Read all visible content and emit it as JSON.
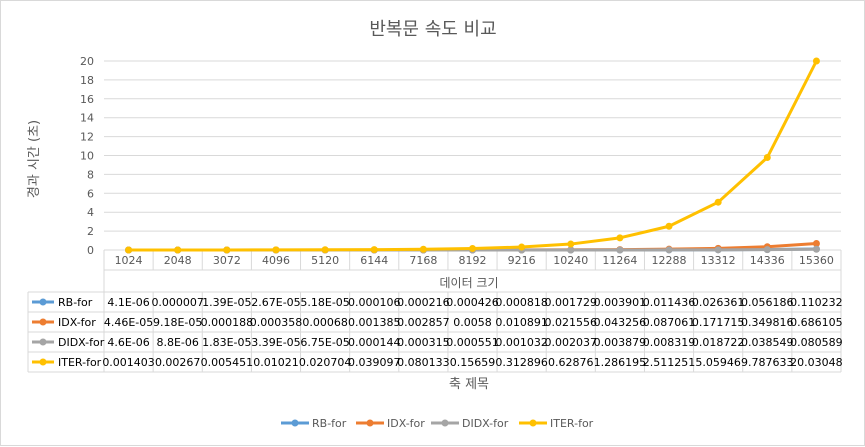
{
  "chart_data": {
    "type": "line",
    "title": "반복문 속도 비교",
    "ylabel": "경과 시간 (초)",
    "xlabel": "데이터 크기",
    "table_axis_title": "축 제목",
    "ylim": [
      0,
      20
    ],
    "yticks": [
      "0",
      "2",
      "4",
      "6",
      "8",
      "10",
      "12",
      "14",
      "16",
      "18",
      "20"
    ],
    "grid": true,
    "legend_position": "bottom",
    "categories": [
      "1024",
      "2048",
      "3072",
      "4096",
      "5120",
      "6144",
      "7168",
      "8192",
      "9216",
      "10240",
      "11264",
      "12288",
      "13312",
      "14336",
      "15360"
    ],
    "series": [
      {
        "name": "RB-for",
        "color": "#5b9bd5",
        "values": [
          4.1e-06,
          7e-06,
          1.39e-05,
          2.67e-05,
          5.18e-05,
          0.000106,
          0.000216,
          0.000426,
          0.000818,
          0.001729,
          0.003901,
          0.011436,
          0.026361,
          0.056186,
          0.110232
        ],
        "labels": [
          "4.1E-06",
          "0.000007",
          "1.39E-05",
          "2.67E-05",
          "5.18E-05",
          "0.000106",
          "0.000216",
          "0.000426",
          "0.000818",
          "0.001729",
          "0.003901",
          "0.011436",
          "0.026361",
          "0.056186",
          "0.110232"
        ]
      },
      {
        "name": "IDX-for",
        "color": "#ed7d31",
        "values": [
          4.46e-05,
          9.18e-05,
          0.000188,
          0.000358,
          0.00068,
          0.001385,
          0.002857,
          0.0058,
          0.010891,
          0.021556,
          0.043256,
          0.087061,
          0.171715,
          0.349816,
          0.686105
        ],
        "labels": [
          "4.46E-05",
          "9.18E-05",
          "0.000188",
          "0.000358",
          "0.00068",
          "0.001385",
          "0.002857",
          "0.0058",
          "0.010891",
          "0.021556",
          "0.043256",
          "0.087061",
          "0.171715",
          "0.349816",
          "0.686105"
        ]
      },
      {
        "name": "DIDX-for",
        "color": "#a5a5a5",
        "values": [
          4.6e-06,
          8.8e-06,
          1.83e-05,
          3.39e-05,
          6.75e-05,
          0.000144,
          0.000315,
          0.000551,
          0.001032,
          0.002037,
          0.003879,
          0.008319,
          0.018722,
          0.038549,
          0.080589
        ],
        "labels": [
          "4.6E-06",
          "8.8E-06",
          "1.83E-05",
          "3.39E-05",
          "6.75E-05",
          "0.000144",
          "0.000315",
          "0.000551",
          "0.001032",
          "0.002037",
          "0.003879",
          "0.008319",
          "0.018722",
          "0.038549",
          "0.080589"
        ]
      },
      {
        "name": "ITER-for",
        "color": "#ffc000",
        "values": [
          0.001403,
          0.00267,
          0.005451,
          0.01021,
          0.020704,
          0.039097,
          0.080133,
          0.15659,
          0.312896,
          0.62876,
          1.286195,
          2.511251,
          5.05946,
          9.787633,
          20.03048
        ],
        "labels": [
          "0.001403",
          "0.00267",
          "0.005451",
          "0.01021",
          "0.020704",
          "0.039097",
          "0.080133",
          "0.15659",
          "0.312896",
          "0.62876",
          "1.286195",
          "2.511251",
          "5.05946",
          "9.787633",
          "20.03048"
        ]
      }
    ]
  }
}
